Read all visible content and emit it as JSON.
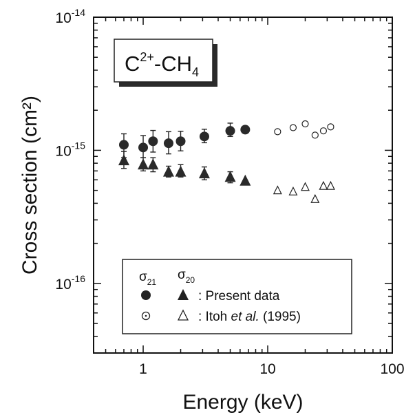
{
  "chart_data": {
    "type": "scatter",
    "xlabel": "Energy (keV)",
    "ylabel": "Cross section (cm²)",
    "xscale": "log",
    "yscale": "log",
    "xlim": [
      0.4,
      100
    ],
    "ylim": [
      3e-17,
      1e-14
    ],
    "x_ticks": [
      {
        "value": 1,
        "label": "1"
      },
      {
        "value": 10,
        "label": "10"
      },
      {
        "value": 100,
        "label": "100"
      }
    ],
    "y_ticks": [
      {
        "value": 1e-16,
        "base": "10",
        "exp": "-16"
      },
      {
        "value": 1e-15,
        "base": "10",
        "exp": "-15"
      },
      {
        "value": 1e-14,
        "base": "10",
        "exp": "-14"
      }
    ],
    "grid": false,
    "title_box": {
      "base1": "C",
      "sup1": "2+",
      "mid": "-CH",
      "sub1": "4",
      "placement": "top-left"
    },
    "legend": {
      "placement": "bottom",
      "col_headers": [
        {
          "symbol": "σ",
          "subscript": "21"
        },
        {
          "symbol": "σ",
          "subscript": "20"
        }
      ],
      "rows": [
        {
          "label": ": Present data",
          "label_italic": "",
          "label_after": ""
        },
        {
          "label": ": Itoh ",
          "label_italic": "et al.",
          "label_after": " (1995)"
        }
      ]
    },
    "series": [
      {
        "name": "σ21 Present data",
        "marker": "filled-circle",
        "x": [
          0.7,
          1.0,
          1.2,
          1.6,
          2.0,
          3.1,
          5.0,
          6.6
        ],
        "y": [
          1.1e-15,
          1.05e-15,
          1.17e-15,
          1.13e-15,
          1.17e-15,
          1.27e-15,
          1.4e-15,
          1.43e-15
        ],
        "err_lo": [
          8.8e-16,
          8.8e-16,
          9.7e-16,
          9.4e-16,
          9.9e-16,
          1.14e-15,
          1.27e-15,
          null
        ],
        "err_hi": [
          1.33e-15,
          1.29e-15,
          1.41e-15,
          1.38e-15,
          1.39e-15,
          1.44e-15,
          1.6e-15,
          null
        ]
      },
      {
        "name": "σ20 Present data",
        "marker": "filled-triangle",
        "x": [
          0.7,
          1.0,
          1.2,
          1.6,
          2.0,
          3.1,
          5.0,
          6.6
        ],
        "y": [
          8.4e-16,
          7.8e-16,
          7.8e-16,
          6.9e-16,
          6.9e-16,
          6.7e-16,
          6.3e-16,
          5.9e-16
        ],
        "err_lo": [
          7.3e-16,
          7e-16,
          6.9e-16,
          6.3e-16,
          6.3e-16,
          6e-16,
          5.7e-16,
          null
        ],
        "err_hi": [
          9.8e-16,
          8.8e-16,
          8.8e-16,
          7.6e-16,
          7.8e-16,
          7.5e-16,
          6.9e-16,
          null
        ]
      },
      {
        "name": "σ21 Itoh et al. (1995)",
        "marker": "open-circle-dot",
        "x": [
          12,
          16,
          20,
          24,
          28,
          32
        ],
        "y": [
          1.38e-15,
          1.48e-15,
          1.58e-15,
          1.3e-15,
          1.4e-15,
          1.5e-15
        ]
      },
      {
        "name": "σ20 Itoh et al. (1995)",
        "marker": "open-triangle",
        "x": [
          12,
          16,
          20,
          24,
          28,
          32
        ],
        "y": [
          5e-16,
          4.9e-16,
          5.3e-16,
          4.3e-16,
          5.4e-16,
          5.4e-16
        ]
      }
    ]
  }
}
